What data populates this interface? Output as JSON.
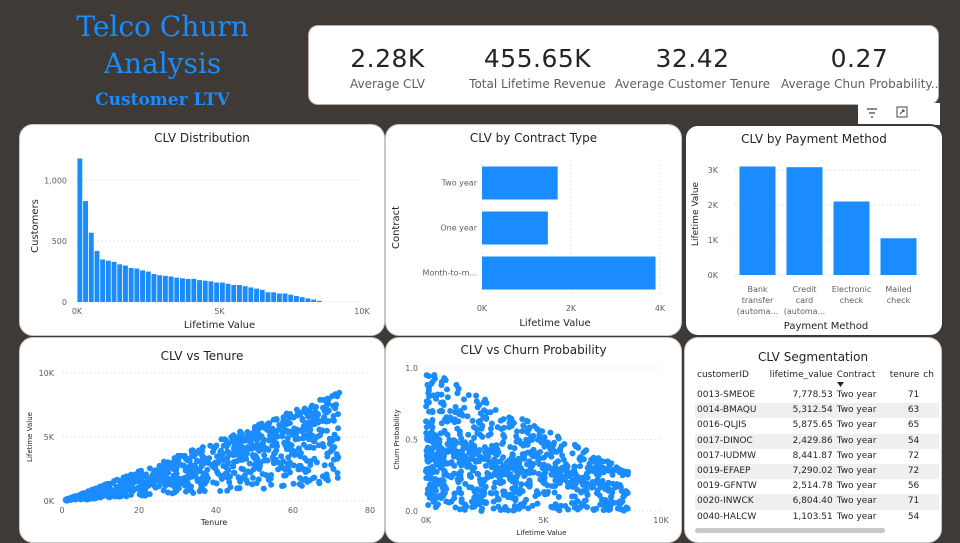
{
  "header": {
    "title": "Telco Churn Analysis",
    "subtitle": "Customer LTV"
  },
  "kpis": [
    {
      "value": "2.28K",
      "label": "Average CLV"
    },
    {
      "value": "455.65K",
      "label": "Total Lifetime Revenue"
    },
    {
      "value": "32.42",
      "label": "Average Customer Tenure"
    },
    {
      "value": "0.27",
      "label": "Average Chun Probability..."
    }
  ],
  "toolbar": {
    "filter_icon": "filter-icon",
    "focus_icon": "focus-mode-icon",
    "more_icon": "more-options-icon",
    "more_label": "···"
  },
  "colors": {
    "accent": "#118dff",
    "bar": "#1a8cff"
  },
  "chart_data": [
    {
      "type": "bar",
      "title": "CLV Distribution",
      "xlabel": "Lifetime Value",
      "ylabel": "Customers",
      "xlim": [
        0,
        10000
      ],
      "ylim": [
        0,
        1250
      ],
      "xticks": [
        "0K",
        "5K",
        "10K"
      ],
      "yticks": [
        "0",
        "500",
        "1,000"
      ],
      "bin_width": 200,
      "values": [
        1180,
        830,
        570,
        420,
        350,
        340,
        330,
        310,
        300,
        280,
        275,
        260,
        250,
        230,
        220,
        215,
        210,
        200,
        195,
        190,
        190,
        180,
        175,
        170,
        160,
        160,
        150,
        140,
        140,
        130,
        120,
        110,
        100,
        80,
        80,
        70,
        70,
        60,
        50,
        40,
        30,
        20,
        10
      ]
    },
    {
      "type": "bar",
      "orientation": "horizontal",
      "title": "CLV by Contract Type",
      "xlabel": "Lifetime Value",
      "ylabel": "Contract",
      "categories": [
        "Two year",
        "One year",
        "Month-to-m..."
      ],
      "values": [
        1700,
        1480,
        3900
      ],
      "xlim": [
        0,
        4000
      ],
      "xticks": [
        "0K",
        "2K",
        "4K"
      ]
    },
    {
      "type": "bar",
      "title": "CLV by Payment Method",
      "xlabel": "Payment Method",
      "ylabel": "Lifetime Value",
      "categories": [
        [
          "Bank",
          "transfer",
          "(automa..."
        ],
        [
          "Credit",
          "card",
          "(automa..."
        ],
        [
          "Electronic",
          "check"
        ],
        [
          "Mailed",
          "check"
        ]
      ],
      "values": [
        3100,
        3080,
        2100,
        1050
      ],
      "ylim": [
        0,
        3400
      ],
      "yticks": [
        "0K",
        "1K",
        "2K",
        "3K"
      ]
    },
    {
      "type": "scatter",
      "title": "CLV vs Tenure",
      "xlabel": "Tenure",
      "ylabel": "Lifetime Value",
      "xlim": [
        0,
        80
      ],
      "ylim": [
        0,
        10000
      ],
      "xticks": [
        "0",
        "20",
        "40",
        "60",
        "80"
      ],
      "yticks": [
        "0K",
        "5K",
        "10K"
      ]
    },
    {
      "type": "scatter",
      "title": "CLV vs Churn Probability",
      "xlabel": "Lifetime Value",
      "ylabel": "Churn Probability",
      "xlim": [
        0,
        10000
      ],
      "ylim": [
        0,
        1
      ],
      "xticks": [
        "0K",
        "5K",
        "10K"
      ],
      "yticks": [
        "0.0",
        "0.5",
        "1.0"
      ]
    },
    {
      "type": "table",
      "title": "CLV Segmentation",
      "columns": [
        "customerID",
        "lifetime_value",
        "Contract",
        "tenure",
        "ch"
      ],
      "rows": [
        [
          "0013-SMEOE",
          "7,778.53",
          "Two year",
          "71",
          ""
        ],
        [
          "0014-BMAQU",
          "5,312.54",
          "Two year",
          "63",
          ""
        ],
        [
          "0016-QLJIS",
          "5,875.65",
          "Two year",
          "65",
          ""
        ],
        [
          "0017-DINOC",
          "2,429.86",
          "Two year",
          "54",
          ""
        ],
        [
          "0017-IUDMW",
          "8,441.87",
          "Two year",
          "72",
          ""
        ],
        [
          "0019-EFAEP",
          "7,290.02",
          "Two year",
          "72",
          ""
        ],
        [
          "0019-GFNTW",
          "2,514.78",
          "Two year",
          "56",
          ""
        ],
        [
          "0020-INWCK",
          "6,804.40",
          "Two year",
          "71",
          ""
        ],
        [
          "0040-HALCW",
          "1,103.51",
          "Two year",
          "54",
          ""
        ]
      ]
    }
  ]
}
